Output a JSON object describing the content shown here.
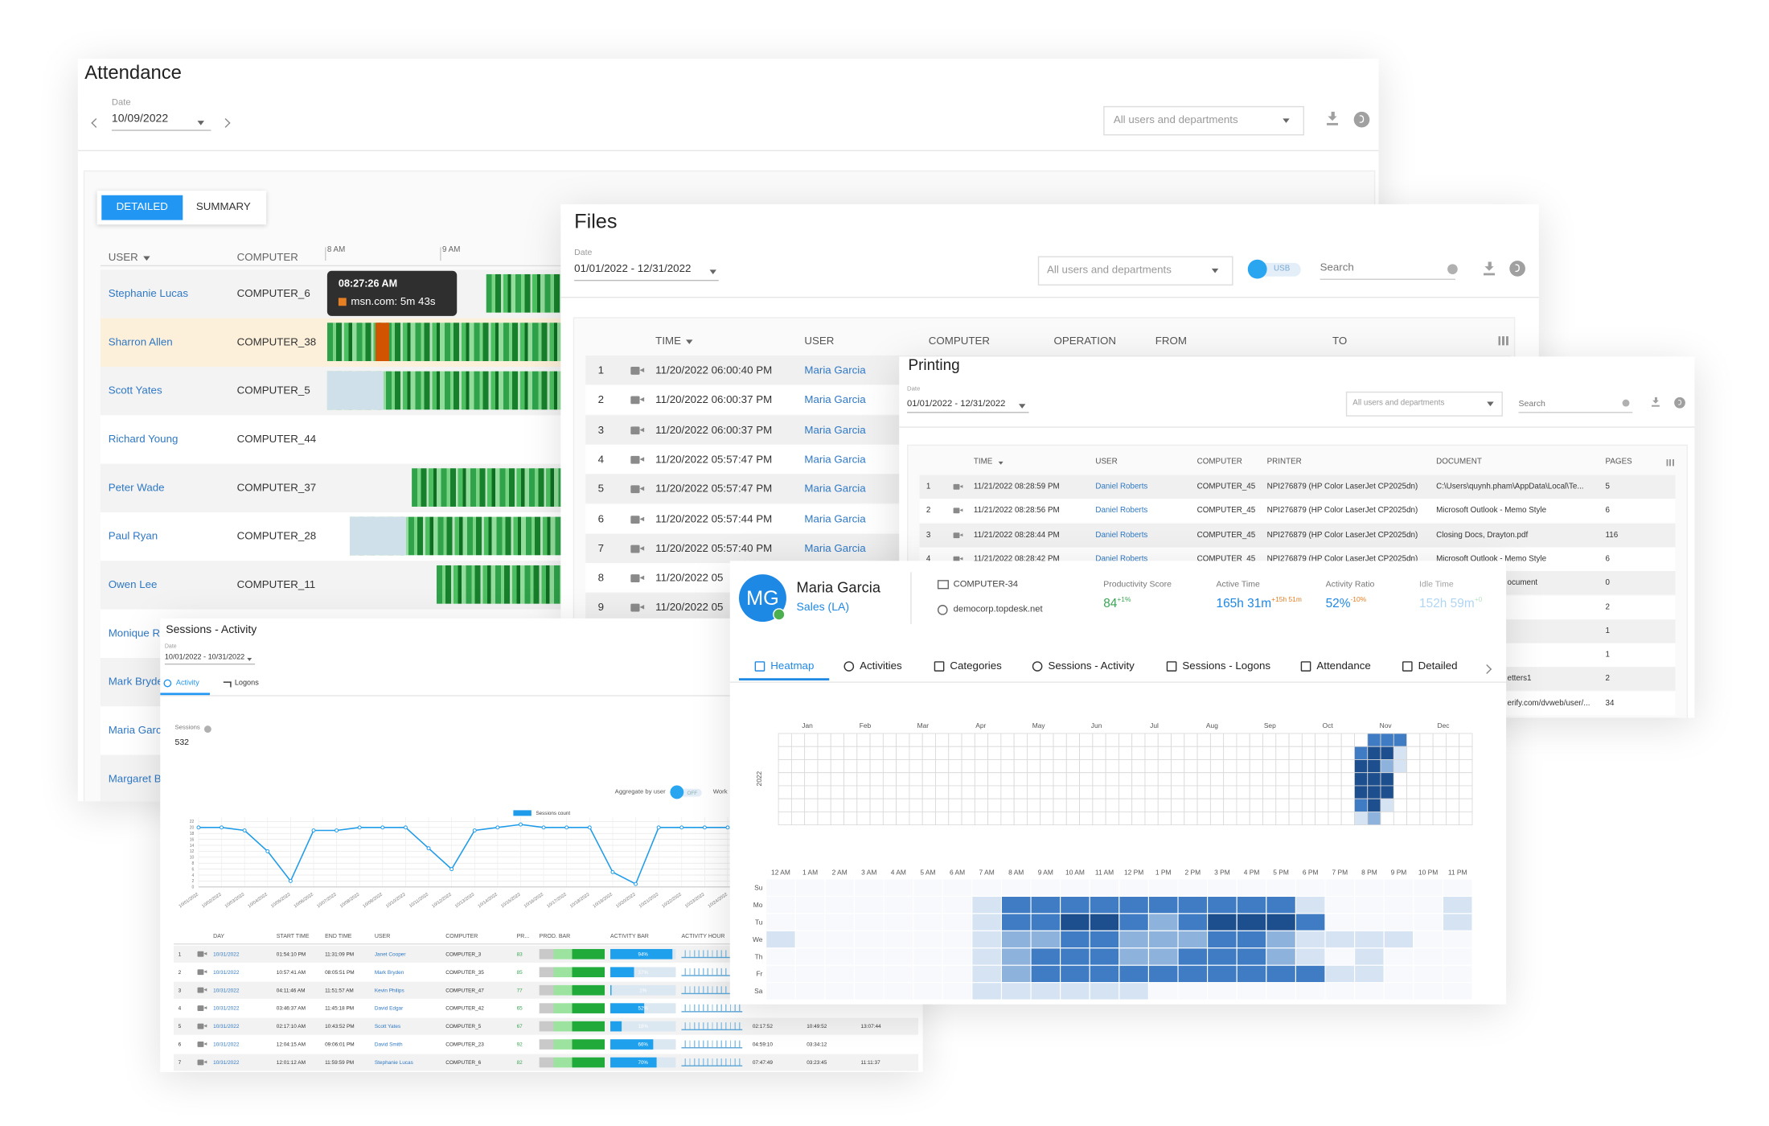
{
  "attendance": {
    "title": "Attendance",
    "date_label": "Date",
    "date": "10/09/2022",
    "filter": "All users and departments",
    "tabs": [
      "DETAILED",
      "SUMMARY"
    ],
    "columns": [
      "USER",
      "COMPUTER"
    ],
    "hours": [
      "8 AM",
      "9 AM"
    ],
    "tooltip": {
      "time": "08:27:26 AM",
      "text": "msn.com: 5m 43s"
    },
    "rows": [
      {
        "user": "Stephanie Lucas",
        "computer": "COMPUTER_6"
      },
      {
        "user": "Sharron Allen",
        "computer": "COMPUTER_38"
      },
      {
        "user": "Scott Yates",
        "computer": "COMPUTER_5"
      },
      {
        "user": "Richard Young",
        "computer": "COMPUTER_44"
      },
      {
        "user": "Peter Wade",
        "computer": "COMPUTER_37"
      },
      {
        "user": "Paul Ryan",
        "computer": "COMPUTER_28"
      },
      {
        "user": "Owen Lee",
        "computer": "COMPUTER_11"
      },
      {
        "user": "Monique Ri"
      },
      {
        "user": "Mark Bryde"
      },
      {
        "user": "Maria Garc"
      },
      {
        "user": "Margaret B"
      }
    ]
  },
  "files": {
    "title": "Files",
    "date_label": "Date",
    "date": "01/01/2022 - 12/31/2022",
    "filter": "All users and departments",
    "toggle": "USB",
    "search": "Search",
    "columns": [
      "TIME",
      "USER",
      "COMPUTER",
      "OPERATION",
      "FROM",
      "TO"
    ],
    "rows": [
      {
        "n": 1,
        "time": "11/20/2022 06:00:40 PM",
        "user": "Maria Garcia"
      },
      {
        "n": 2,
        "time": "11/20/2022 06:00:37 PM",
        "user": "Maria Garcia"
      },
      {
        "n": 3,
        "time": "11/20/2022 06:00:37 PM",
        "user": "Maria Garcia"
      },
      {
        "n": 4,
        "time": "11/20/2022 05:57:47 PM",
        "user": "Maria Garcia"
      },
      {
        "n": 5,
        "time": "11/20/2022 05:57:47 PM",
        "user": "Maria Garcia"
      },
      {
        "n": 6,
        "time": "11/20/2022 05:57:44 PM",
        "user": "Maria Garcia"
      },
      {
        "n": 7,
        "time": "11/20/2022 05:57:40 PM",
        "user": "Maria Garcia"
      },
      {
        "n": 8,
        "time": "11/20/2022 05"
      },
      {
        "n": 9,
        "time": "11/20/2022 05"
      }
    ]
  },
  "printing": {
    "title": "Printing",
    "date_label": "Date",
    "date": "01/01/2022 - 12/31/2022",
    "filter": "All users and departments",
    "search": "Search",
    "columns": [
      "TIME",
      "USER",
      "COMPUTER",
      "PRINTER",
      "DOCUMENT",
      "PAGES"
    ],
    "rows": [
      {
        "n": 1,
        "time": "11/21/2022 08:28:59 PM",
        "user": "Daniel Roberts",
        "computer": "COMPUTER_45",
        "printer": "NPI276879 (HP Color LaserJet CP2025dn)",
        "document": "C:\\Users\\quynh.pham\\AppData\\Local\\Te...",
        "pages": 5
      },
      {
        "n": 2,
        "time": "11/21/2022 08:28:56 PM",
        "user": "Daniel Roberts",
        "computer": "COMPUTER_45",
        "printer": "NPI276879 (HP Color LaserJet CP2025dn)",
        "document": "Microsoft Outlook - Memo Style",
        "pages": 6
      },
      {
        "n": 3,
        "time": "11/21/2022 08:28:44 PM",
        "user": "Daniel Roberts",
        "computer": "COMPUTER_45",
        "printer": "NPI276879 (HP Color LaserJet CP2025dn)",
        "document": "Closing Docs, Drayton.pdf",
        "pages": 116
      },
      {
        "n": 4,
        "time": "11/21/2022 08:28:42 PM",
        "user": "Daniel Roberts",
        "computer": "COMPUTER_45",
        "printer": "NPI276879 (HP Color LaserJet CP2025dn)",
        "document": "Microsoft Outlook - Memo Style",
        "pages": 6
      },
      {
        "document": "ocument",
        "pages": 0
      },
      {
        "pages": 2
      },
      {
        "pages": 1
      },
      {
        "pages": 1
      },
      {
        "document": "etters1",
        "pages": 2
      },
      {
        "document": "erify.com/dvweb/user/...",
        "pages": 34
      }
    ]
  },
  "sessions": {
    "title": "Sessions - Activity",
    "date_label": "Date",
    "date": "10/01/2022 - 10/31/2022",
    "tabs": [
      "Activity",
      "Logons"
    ],
    "sessions_label": "Sessions",
    "sessions_value": 532,
    "aggregate": "Aggregate by user",
    "toggle": "OFF",
    "work": "Work",
    "chart": {
      "type": "line",
      "legend": "Sessions count",
      "color": "#1e9be9",
      "categories": [
        "10/01/2022",
        "10/02/2022",
        "10/03/2022",
        "10/04/2022",
        "10/05/2022",
        "10/06/2022",
        "10/07/2022",
        "10/08/2022",
        "10/09/2022",
        "10/10/2022",
        "10/11/2022",
        "10/12/2022",
        "10/13/2022",
        "10/14/2022",
        "10/15/2022",
        "10/16/2022",
        "10/17/2022",
        "10/18/2022",
        "10/19/2022",
        "10/20/2022",
        "10/21/2022",
        "10/22/2022",
        "10/23/2022",
        "10/24/2022"
      ],
      "values": [
        20,
        20,
        19,
        12,
        2,
        19,
        19,
        20,
        20,
        20,
        13,
        6,
        19,
        20,
        21,
        20,
        20,
        20,
        5,
        1,
        20,
        20,
        20,
        20
      ],
      "ylim": [
        0,
        22
      ],
      "yticks": [
        0,
        2,
        4,
        6,
        8,
        10,
        12,
        14,
        16,
        18,
        20,
        22
      ],
      "grid": true
    },
    "columns": [
      "DAY",
      "START TIME",
      "END TIME",
      "USER",
      "COMPUTER",
      "PR...",
      "PROD. BAR",
      "ACTIVITY BAR",
      "ACTIVITY HOUR"
    ],
    "rows": [
      {
        "n": 1,
        "day": "10/31/2022",
        "start": "01:54:10 PM",
        "end": "11:31:09 PM",
        "user": "Janet Cooper",
        "computer": "COMPUTER_3",
        "prod": 83,
        "activity": 94,
        "activity_label": "94%"
      },
      {
        "n": 2,
        "day": "10/31/2022",
        "start": "10:57:41 AM",
        "end": "08:05:51 PM",
        "user": "Mark Bryden",
        "computer": "COMPUTER_35",
        "prod": 85,
        "activity": 37,
        "activity_label": "37%"
      },
      {
        "n": 3,
        "day": "10/31/2022",
        "start": "04:11:46 AM",
        "end": "11:51:57 AM",
        "user": "Kevin Philips",
        "computer": "COMPUTER_47",
        "prod": 77,
        "activity": 1,
        "activity_label": "1%"
      },
      {
        "n": 4,
        "day": "10/31/2022",
        "start": "03:46:37 AM",
        "end": "11:45:18 PM",
        "user": "David Edgar",
        "computer": "COMPUTER_42",
        "prod": 65,
        "activity": 52,
        "activity_label": "52%"
      },
      {
        "n": 5,
        "day": "10/31/2022",
        "start": "02:17:10 AM",
        "end": "10:43:52 PM",
        "user": "Scott Yates",
        "computer": "COMPUTER_5",
        "prod": 67,
        "activity": 18,
        "activity_label": "18%",
        "extra": [
          "02:17:52",
          "10:49:52",
          "13:07:44"
        ]
      },
      {
        "n": 6,
        "day": "10/31/2022",
        "start": "12:04:15 AM",
        "end": "09:06:01 PM",
        "user": "David Smith",
        "computer": "COMPUTER_23",
        "prod": 92,
        "activity": 66,
        "activity_label": "66%",
        "extra": [
          "04:59:10",
          "03:34:12"
        ]
      },
      {
        "n": 7,
        "day": "10/31/2022",
        "start": "12:01:12 AM",
        "end": "11:59:59 PM",
        "user": "Stephanie Lucas",
        "computer": "COMPUTER_6",
        "prod": 82,
        "activity": 70,
        "activity_label": "70%",
        "extra": [
          "07:47:49",
          "03:23:45",
          "11:11:37"
        ]
      }
    ]
  },
  "profile": {
    "initials": "MG",
    "name": "Maria Garcia",
    "department": "Sales (LA)",
    "computer": "COMPUTER-34",
    "domain": "democorp.topdesk.net",
    "metrics": [
      {
        "label": "Productivity Score",
        "value": "84",
        "delta": "+1%"
      },
      {
        "label": "Active Time",
        "value": "165h 31m",
        "delta": "+15h 51m"
      },
      {
        "label": "Activity Ratio",
        "value": "52%",
        "delta": "-10%"
      },
      {
        "label": "Idle Time",
        "value": "152h 59m",
        "delta": "+0"
      }
    ],
    "tabs": [
      "Heatmap",
      "Activities",
      "Categories",
      "Sessions - Activity",
      "Sessions - Logons",
      "Attendance",
      "Detailed"
    ],
    "colors": [
      "#f7f9fc",
      "#d5e3f3",
      "#8db2db",
      "#3f7cc3",
      "#1d4e8e"
    ],
    "year_heatmap": {
      "year": "2022",
      "months": [
        "Jan",
        "Feb",
        "Mar",
        "Apr",
        "May",
        "Jun",
        "Jul",
        "Aug",
        "Sep",
        "Oct",
        "Nov",
        "Dec"
      ],
      "levels": [
        [
          0,
          0,
          0,
          0,
          0,
          0,
          0,
          0,
          0,
          0,
          0,
          0,
          0,
          0,
          0,
          0,
          0,
          0,
          0,
          0,
          0,
          0,
          0,
          0,
          0,
          0,
          0,
          0,
          0,
          0,
          0,
          0,
          0,
          0,
          0,
          0,
          0,
          0,
          0,
          0,
          0,
          0,
          0,
          0,
          0,
          3,
          3,
          3,
          0,
          0,
          0,
          0,
          0
        ],
        [
          0,
          0,
          0,
          0,
          0,
          0,
          0,
          0,
          0,
          0,
          0,
          0,
          0,
          0,
          0,
          0,
          0,
          0,
          0,
          0,
          0,
          0,
          0,
          0,
          0,
          0,
          0,
          0,
          0,
          0,
          0,
          0,
          0,
          0,
          0,
          0,
          0,
          0,
          0,
          0,
          0,
          0,
          0,
          0,
          3,
          4,
          4,
          1,
          0,
          0,
          0,
          0,
          0
        ],
        [
          0,
          0,
          0,
          0,
          0,
          0,
          0,
          0,
          0,
          0,
          0,
          0,
          0,
          0,
          0,
          0,
          0,
          0,
          0,
          0,
          0,
          0,
          0,
          0,
          0,
          0,
          0,
          0,
          0,
          0,
          0,
          0,
          0,
          0,
          0,
          0,
          0,
          0,
          0,
          0,
          0,
          0,
          0,
          0,
          4,
          4,
          2,
          1,
          0,
          0,
          0,
          0,
          0
        ],
        [
          0,
          0,
          0,
          0,
          0,
          0,
          0,
          0,
          0,
          0,
          0,
          0,
          0,
          0,
          0,
          0,
          0,
          0,
          0,
          0,
          0,
          0,
          0,
          0,
          0,
          0,
          0,
          0,
          0,
          0,
          0,
          0,
          0,
          0,
          0,
          0,
          0,
          0,
          0,
          0,
          0,
          0,
          0,
          0,
          4,
          4,
          4,
          0,
          0,
          0,
          0,
          0,
          0
        ],
        [
          0,
          0,
          0,
          0,
          0,
          0,
          0,
          0,
          0,
          0,
          0,
          0,
          0,
          0,
          0,
          0,
          0,
          0,
          0,
          0,
          0,
          0,
          0,
          0,
          0,
          0,
          0,
          0,
          0,
          0,
          0,
          0,
          0,
          0,
          0,
          0,
          0,
          0,
          0,
          0,
          0,
          0,
          0,
          0,
          4,
          4,
          4,
          0,
          0,
          0,
          0,
          0,
          0
        ],
        [
          0,
          0,
          0,
          0,
          0,
          0,
          0,
          0,
          0,
          0,
          0,
          0,
          0,
          0,
          0,
          0,
          0,
          0,
          0,
          0,
          0,
          0,
          0,
          0,
          0,
          0,
          0,
          0,
          0,
          0,
          0,
          0,
          0,
          0,
          0,
          0,
          0,
          0,
          0,
          0,
          0,
          0,
          0,
          0,
          3,
          4,
          1,
          0,
          0,
          0,
          0,
          0,
          0
        ],
        [
          0,
          0,
          0,
          0,
          0,
          0,
          0,
          0,
          0,
          0,
          0,
          0,
          0,
          0,
          0,
          0,
          0,
          0,
          0,
          0,
          0,
          0,
          0,
          0,
          0,
          0,
          0,
          0,
          0,
          0,
          0,
          0,
          0,
          0,
          0,
          0,
          0,
          0,
          0,
          0,
          0,
          0,
          0,
          0,
          1,
          2,
          0,
          0,
          0,
          0,
          0,
          0,
          0
        ]
      ]
    },
    "hour_heatmap": {
      "hours": [
        "12 AM",
        "1 AM",
        "2 AM",
        "3 AM",
        "4 AM",
        "5 AM",
        "6 AM",
        "7 AM",
        "8 AM",
        "9 AM",
        "10 AM",
        "11 AM",
        "12 PM",
        "1 PM",
        "2 PM",
        "3 PM",
        "4 PM",
        "5 PM",
        "6 PM",
        "7 PM",
        "8 PM",
        "9 PM",
        "10 PM",
        "11 PM"
      ],
      "days": [
        "Su",
        "Mo",
        "Tu",
        "We",
        "Th",
        "Fr",
        "Sa"
      ],
      "levels": [
        [
          0,
          0,
          0,
          0,
          0,
          0,
          0,
          0,
          0,
          0,
          0,
          0,
          0,
          0,
          0,
          0,
          0,
          0,
          0,
          0,
          0,
          0,
          0,
          0
        ],
        [
          0,
          0,
          0,
          0,
          0,
          0,
          0,
          1,
          3,
          3,
          3,
          3,
          3,
          3,
          3,
          3,
          3,
          3,
          1,
          0,
          0,
          0,
          0,
          1
        ],
        [
          0,
          0,
          0,
          0,
          0,
          0,
          0,
          1,
          3,
          3,
          4,
          4,
          3,
          2,
          3,
          4,
          4,
          4,
          3,
          0,
          0,
          0,
          0,
          1
        ],
        [
          1,
          0,
          0,
          0,
          0,
          0,
          0,
          1,
          2,
          2,
          3,
          3,
          2,
          2,
          2,
          3,
          3,
          2,
          1,
          1,
          1,
          1,
          0,
          0
        ],
        [
          0,
          0,
          0,
          0,
          0,
          0,
          0,
          1,
          2,
          3,
          3,
          3,
          2,
          2,
          3,
          3,
          3,
          2,
          1,
          0,
          1,
          0,
          0,
          0
        ],
        [
          0,
          0,
          0,
          0,
          0,
          0,
          0,
          1,
          2,
          3,
          3,
          3,
          3,
          3,
          3,
          3,
          3,
          3,
          3,
          1,
          1,
          0,
          0,
          0
        ],
        [
          0,
          0,
          0,
          0,
          0,
          0,
          0,
          1,
          1,
          1,
          1,
          1,
          1,
          0,
          0,
          0,
          0,
          0,
          0,
          0,
          0,
          0,
          0,
          0
        ]
      ]
    }
  }
}
